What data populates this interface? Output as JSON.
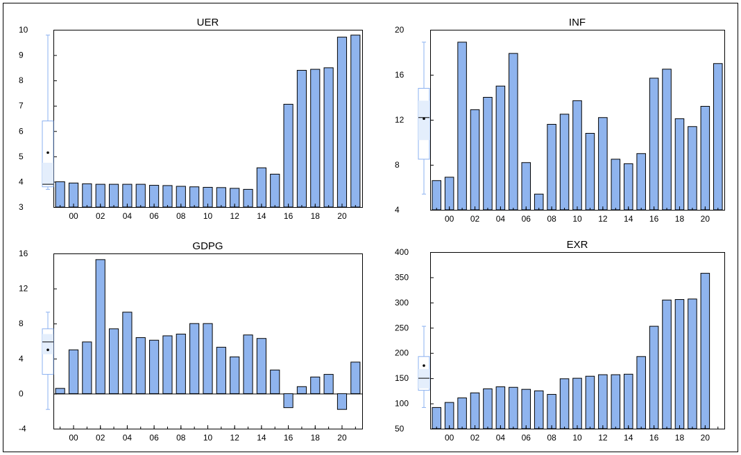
{
  "colors": {
    "bar_fill": "#8fb4ee",
    "bar_stroke": "#000000",
    "box_stroke": "#8ab0f0",
    "box_fill": "#e4eefc",
    "axis": "#000000",
    "text": "#000000"
  },
  "chart_data": [
    {
      "type": "bar",
      "title": "UER",
      "xlabel": "",
      "ylabel": "",
      "ylim": [
        3,
        10
      ],
      "yticks": [
        "3",
        "4",
        "5",
        "6",
        "7",
        "8",
        "9",
        "10"
      ],
      "ytick_values": [
        3,
        4,
        5,
        6,
        7,
        8,
        9,
        10
      ],
      "x_tick_labels": [
        "00",
        "02",
        "04",
        "06",
        "08",
        "10",
        "12",
        "14",
        "16",
        "18",
        "20"
      ],
      "years": [
        1999,
        2000,
        2001,
        2002,
        2003,
        2004,
        2005,
        2006,
        2007,
        2008,
        2009,
        2010,
        2011,
        2012,
        2013,
        2014,
        2015,
        2016,
        2017,
        2018,
        2019,
        2020,
        2021
      ],
      "values": [
        4.0,
        3.95,
        3.92,
        3.9,
        3.9,
        3.9,
        3.9,
        3.86,
        3.85,
        3.82,
        3.8,
        3.78,
        3.77,
        3.74,
        3.7,
        4.55,
        4.3,
        7.06,
        8.4,
        8.44,
        8.5,
        9.71,
        9.79
      ],
      "summary_box": {
        "whisker_low": 3.7,
        "q1": 3.8,
        "median": 3.9,
        "q3": 6.4,
        "whisker_high": 9.79,
        "mean": 5.15,
        "inner_band": [
          3.86,
          4.75
        ]
      },
      "grid": false,
      "legend": "none"
    },
    {
      "type": "bar",
      "title": "INF",
      "xlabel": "",
      "ylabel": "",
      "ylim": [
        4,
        20
      ],
      "yticks": [
        "4",
        "8",
        "12",
        "16",
        "20"
      ],
      "ytick_values": [
        4,
        8,
        12,
        16,
        20
      ],
      "x_tick_labels": [
        "00",
        "02",
        "04",
        "06",
        "08",
        "10",
        "12",
        "14",
        "16",
        "18",
        "20"
      ],
      "years": [
        1999,
        2000,
        2001,
        2002,
        2003,
        2004,
        2005,
        2006,
        2007,
        2008,
        2009,
        2010,
        2011,
        2012,
        2013,
        2014,
        2015,
        2016,
        2017,
        2018,
        2019,
        2020,
        2021
      ],
      "values": [
        6.6,
        6.9,
        18.9,
        12.9,
        14.0,
        15.0,
        17.9,
        8.2,
        5.4,
        11.6,
        12.5,
        13.7,
        10.8,
        12.2,
        8.5,
        8.1,
        9.0,
        15.7,
        16.5,
        12.1,
        11.4,
        13.2,
        17.0
      ],
      "summary_box": {
        "whisker_low": 5.4,
        "q1": 8.5,
        "median": 12.2,
        "q3": 14.8,
        "whisker_high": 18.9,
        "mean": 12.1,
        "inner_band": [
          10.2,
          13.7
        ]
      },
      "grid": false,
      "legend": "none"
    },
    {
      "type": "bar",
      "title": "GDPG",
      "xlabel": "",
      "ylabel": "",
      "ylim": [
        -4,
        16
      ],
      "yticks": [
        "-4",
        "0",
        "4",
        "8",
        "12",
        "16"
      ],
      "ytick_values": [
        -4,
        0,
        4,
        8,
        12,
        16
      ],
      "x_tick_labels": [
        "00",
        "02",
        "04",
        "06",
        "08",
        "10",
        "12",
        "14",
        "16",
        "18",
        "20"
      ],
      "years": [
        1999,
        2000,
        2001,
        2002,
        2003,
        2004,
        2005,
        2006,
        2007,
        2008,
        2009,
        2010,
        2011,
        2012,
        2013,
        2014,
        2015,
        2016,
        2017,
        2018,
        2019,
        2020,
        2021
      ],
      "values": [
        0.6,
        5.0,
        5.9,
        15.3,
        7.4,
        9.3,
        6.4,
        6.1,
        6.6,
        6.8,
        8.0,
        8.0,
        5.3,
        4.2,
        6.7,
        6.3,
        2.7,
        -1.6,
        0.8,
        1.9,
        2.2,
        -1.8,
        3.6
      ],
      "summary_box": {
        "whisker_low": -1.8,
        "q1": 2.2,
        "median": 5.9,
        "q3": 7.4,
        "whisker_high": 9.3,
        "mean": 5.0,
        "inner_band": [
          4.5,
          6.8
        ]
      },
      "grid": false,
      "legend": "none"
    },
    {
      "type": "bar",
      "title": "EXR",
      "xlabel": "",
      "ylabel": "",
      "ylim": [
        50,
        400
      ],
      "yticks": [
        "50",
        "100",
        "150",
        "200",
        "250",
        "300",
        "350",
        "400"
      ],
      "ytick_values": [
        50,
        100,
        150,
        200,
        250,
        300,
        350,
        400
      ],
      "x_tick_labels": [
        "00",
        "02",
        "04",
        "06",
        "08",
        "10",
        "12",
        "14",
        "16",
        "18",
        "20"
      ],
      "years": [
        1999,
        2000,
        2001,
        2002,
        2003,
        2004,
        2005,
        2006,
        2007,
        2008,
        2009,
        2010,
        2011,
        2012,
        2013,
        2014,
        2015,
        2016,
        2017,
        2018,
        2019,
        2020
      ],
      "values": [
        92,
        102,
        111,
        121,
        129,
        133,
        132,
        128,
        125,
        118,
        149,
        150,
        154,
        157,
        157,
        158,
        193,
        253,
        305,
        306,
        307,
        358
      ],
      "summary_box": {
        "whisker_low": 92,
        "q1": 126,
        "median": 150,
        "q3": 193,
        "whisker_high": 253,
        "mean": 175,
        "inner_band": [
          130,
          168
        ]
      },
      "grid": false,
      "legend": "none"
    }
  ]
}
